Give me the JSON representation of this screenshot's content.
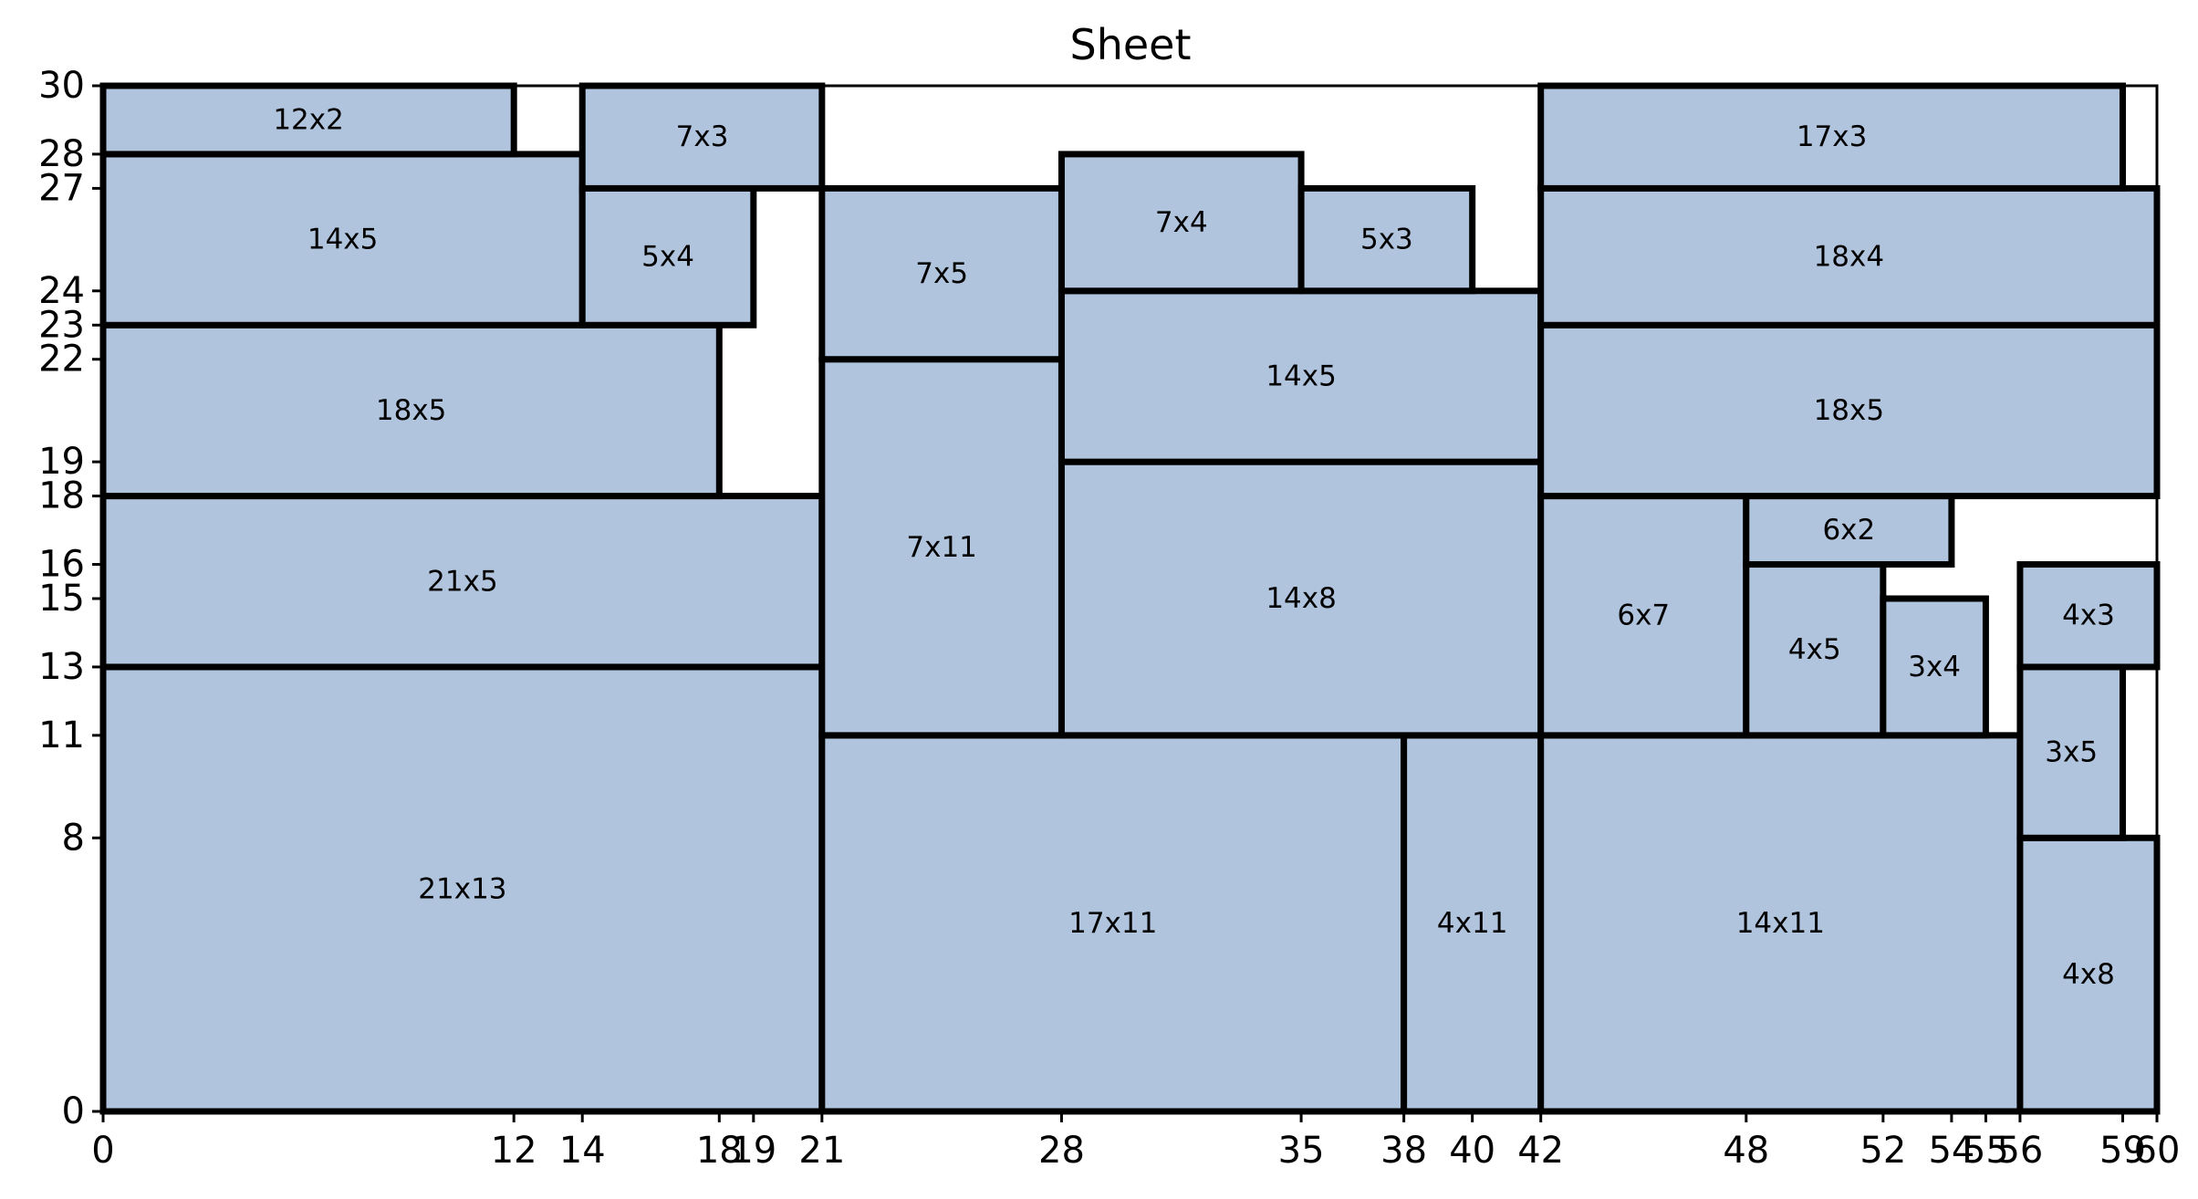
{
  "chart_data": {
    "type": "rectangle-packing",
    "title": "Sheet",
    "xlabel": "",
    "ylabel": "",
    "xlim": [
      0,
      60
    ],
    "ylim": [
      0,
      30
    ],
    "grid": false,
    "x_ticks": [
      0,
      12,
      14,
      18,
      19,
      21,
      28,
      35,
      38,
      40,
      42,
      48,
      52,
      54,
      55,
      56,
      59,
      60
    ],
    "y_ticks": [
      0,
      8,
      11,
      13,
      15,
      16,
      18,
      19,
      22,
      23,
      24,
      27,
      28,
      30
    ],
    "fill_color": "#b0c4de",
    "edge_color": "#000000",
    "rects": [
      {
        "label": "21x13",
        "x": 0,
        "y": 0,
        "w": 21,
        "h": 13
      },
      {
        "label": "21x5",
        "x": 0,
        "y": 13,
        "w": 21,
        "h": 5
      },
      {
        "label": "18x5",
        "x": 0,
        "y": 18,
        "w": 18,
        "h": 5
      },
      {
        "label": "14x5",
        "x": 0,
        "y": 23,
        "w": 14,
        "h": 5
      },
      {
        "label": "12x2",
        "x": 0,
        "y": 28,
        "w": 12,
        "h": 2
      },
      {
        "label": "5x4",
        "x": 14,
        "y": 23,
        "w": 5,
        "h": 4
      },
      {
        "label": "7x3",
        "x": 14,
        "y": 27,
        "w": 7,
        "h": 3
      },
      {
        "label": "17x11",
        "x": 21,
        "y": 0,
        "w": 17,
        "h": 11
      },
      {
        "label": "7x11",
        "x": 21,
        "y": 11,
        "w": 7,
        "h": 11
      },
      {
        "label": "7x5",
        "x": 21,
        "y": 22,
        "w": 7,
        "h": 5
      },
      {
        "label": "4x11",
        "x": 38,
        "y": 0,
        "w": 4,
        "h": 11
      },
      {
        "label": "14x8",
        "x": 28,
        "y": 11,
        "w": 14,
        "h": 8
      },
      {
        "label": "14x5",
        "x": 28,
        "y": 19,
        "w": 14,
        "h": 5
      },
      {
        "label": "7x4",
        "x": 28,
        "y": 24,
        "w": 7,
        "h": 4
      },
      {
        "label": "5x3",
        "x": 35,
        "y": 24,
        "w": 5,
        "h": 3
      },
      {
        "label": "14x11",
        "x": 42,
        "y": 0,
        "w": 14,
        "h": 11
      },
      {
        "label": "6x7",
        "x": 42,
        "y": 11,
        "w": 6,
        "h": 7
      },
      {
        "label": "4x5",
        "x": 48,
        "y": 11,
        "w": 4,
        "h": 5
      },
      {
        "label": "6x2",
        "x": 48,
        "y": 16,
        "w": 6,
        "h": 2
      },
      {
        "label": "3x4",
        "x": 52,
        "y": 11,
        "w": 3,
        "h": 4
      },
      {
        "label": "18x5",
        "x": 42,
        "y": 18,
        "w": 18,
        "h": 5
      },
      {
        "label": "18x4",
        "x": 42,
        "y": 23,
        "w": 18,
        "h": 4
      },
      {
        "label": "17x3",
        "x": 42,
        "y": 27,
        "w": 17,
        "h": 3
      },
      {
        "label": "4x8",
        "x": 56,
        "y": 0,
        "w": 4,
        "h": 8
      },
      {
        "label": "3x5",
        "x": 56,
        "y": 8,
        "w": 3,
        "h": 5
      },
      {
        "label": "4x3",
        "x": 56,
        "y": 13,
        "w": 4,
        "h": 3
      }
    ]
  }
}
